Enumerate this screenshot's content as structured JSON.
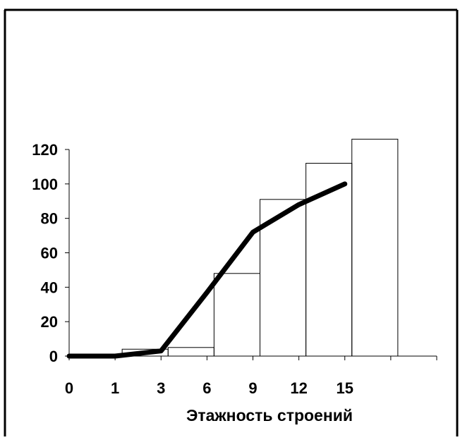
{
  "chart_data": {
    "type": "line",
    "title": "",
    "xlabel": "Этажность строений",
    "ylabel": "",
    "x_tick_labels": [
      "0",
      "1",
      "3",
      "6",
      "9",
      "12",
      "15"
    ],
    "y_ticks": [
      0,
      20,
      40,
      60,
      80,
      100,
      120
    ],
    "ylim": [
      0,
      120
    ],
    "grid": false,
    "legend": "none",
    "line_color": "#000000",
    "series": [
      {
        "values_at_ticks": [
          0,
          0,
          3,
          37,
          72,
          88,
          100
        ]
      }
    ],
    "bars": [
      {
        "from_tick": 2,
        "to_tick": 3,
        "value": 4
      },
      {
        "from_tick": 3,
        "to_tick": 4,
        "value": 5
      },
      {
        "from_tick": 4,
        "to_tick": 5,
        "value": 48
      },
      {
        "from_tick": 5,
        "to_tick": 6,
        "value": 91
      },
      {
        "from_tick": 6,
        "to_tick": 7,
        "value": 112
      },
      {
        "from_tick": 7,
        "to_tick": 8,
        "value": 126
      }
    ]
  }
}
